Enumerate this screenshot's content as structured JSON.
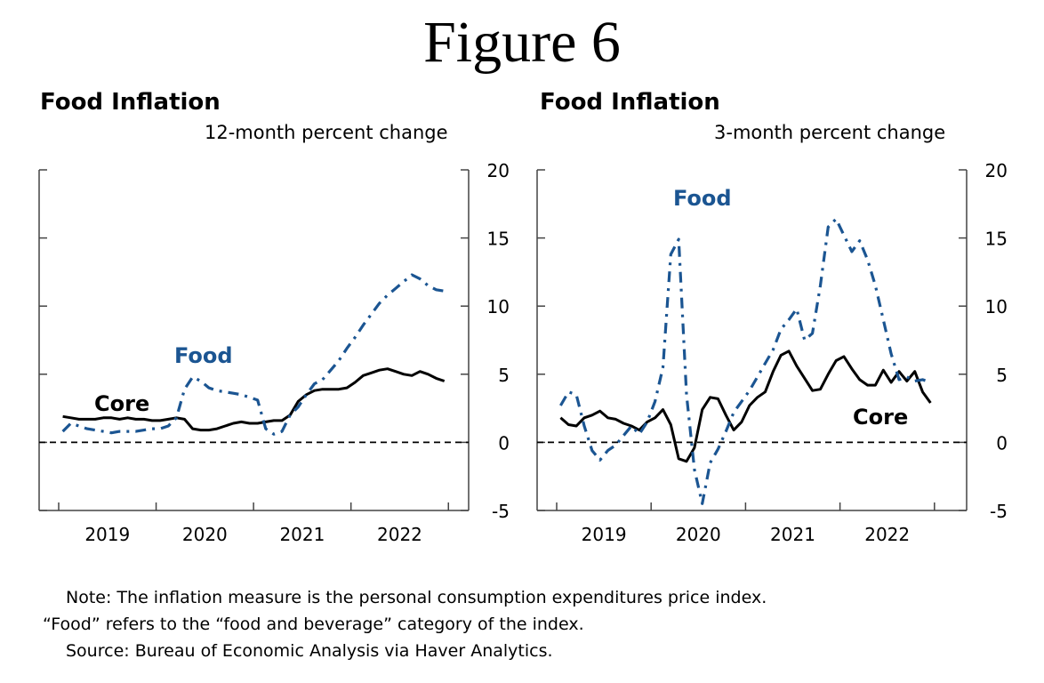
{
  "figure_title": "Figure 6",
  "colors": {
    "food": "#1b5592",
    "core": "#000000",
    "axis": "#444444"
  },
  "notes": {
    "line1": "Note:  The inflation measure is the personal consumption expenditures price index.",
    "line2": "“Food” refers to the “food and beverage” category of the index.",
    "line3": "Source:   Bureau of Economic Analysis via Haver Analytics."
  },
  "chart_data": [
    {
      "type": "line",
      "title": "Food Inflation",
      "subtitle": "12-month percent change",
      "xlabel": "",
      "ylabel": "",
      "ylim": [
        -5,
        20
      ],
      "yticks": [
        -5,
        0,
        5,
        10,
        15,
        20
      ],
      "ytick_labels": [
        "-5",
        "0",
        "5",
        "10",
        "15",
        "20"
      ],
      "xtick_labels": [
        "2019",
        "2020",
        "2021",
        "2022"
      ],
      "x_range": "2019-01 to 2022-12 (monthly)",
      "reference_line": {
        "y": 0,
        "style": "dashed"
      },
      "grid": false,
      "legend": "inline-labels",
      "series": [
        {
          "name": "Core",
          "label": "Core",
          "style": "solid",
          "values": [
            1.9,
            1.8,
            1.7,
            1.7,
            1.7,
            1.8,
            1.8,
            1.7,
            1.8,
            1.7,
            1.7,
            1.6,
            1.6,
            1.7,
            1.8,
            1.7,
            1.0,
            0.9,
            0.9,
            1.0,
            1.2,
            1.4,
            1.5,
            1.4,
            1.4,
            1.5,
            1.6,
            1.6,
            2.0,
            3.0,
            3.5,
            3.8,
            3.9,
            3.9,
            3.9,
            4.0,
            4.4,
            4.9,
            5.1,
            5.3,
            5.4,
            5.2,
            5.0,
            4.9,
            5.2,
            5.0,
            4.7,
            4.5
          ]
        },
        {
          "name": "Food",
          "label": "Food",
          "style": "dash-dot",
          "values": [
            0.8,
            1.4,
            1.2,
            1.0,
            0.9,
            0.8,
            0.7,
            0.8,
            0.8,
            0.8,
            0.9,
            1.0,
            1.0,
            1.2,
            1.8,
            3.9,
            4.8,
            4.5,
            4.0,
            3.8,
            3.7,
            3.6,
            3.5,
            3.3,
            3.1,
            1.0,
            0.6,
            0.8,
            2.0,
            2.6,
            3.5,
            4.3,
            4.6,
            5.3,
            6.0,
            6.9,
            7.7,
            8.6,
            9.4,
            10.2,
            10.8,
            11.3,
            11.8,
            12.3,
            12.0,
            11.5,
            11.2,
            11.1
          ]
        }
      ]
    },
    {
      "type": "line",
      "title": "Food Inflation",
      "subtitle": "3-month percent change",
      "xlabel": "",
      "ylabel": "",
      "ylim": [
        -5,
        20
      ],
      "yticks": [
        -5,
        0,
        5,
        10,
        15,
        20
      ],
      "ytick_labels": [
        "-5",
        "0",
        "5",
        "10",
        "15",
        "20"
      ],
      "xtick_labels": [
        "2019",
        "2020",
        "2021",
        "2022"
      ],
      "x_range": "2019-01 to 2022-12 (monthly)",
      "reference_line": {
        "y": 0,
        "style": "dashed"
      },
      "grid": false,
      "legend": "inline-labels",
      "series": [
        {
          "name": "Core",
          "label": "Core",
          "style": "solid",
          "values": [
            1.8,
            1.3,
            1.2,
            1.8,
            2.0,
            2.3,
            1.8,
            1.7,
            1.4,
            1.2,
            0.9,
            1.5,
            1.8,
            2.4,
            1.3,
            -1.2,
            -1.4,
            -0.4,
            2.4,
            3.3,
            3.2,
            2.0,
            0.9,
            1.5,
            2.7,
            3.3,
            3.7,
            5.2,
            6.4,
            6.7,
            5.6,
            4.7,
            3.8,
            3.9,
            5.0,
            6.0,
            6.3,
            5.4,
            4.6,
            4.2,
            4.2,
            5.3,
            4.4,
            5.2,
            4.5,
            5.2,
            3.7,
            2.9
          ]
        },
        {
          "name": "Food",
          "label": "Food",
          "style": "dash-dot",
          "values": [
            2.7,
            3.7,
            3.5,
            1.2,
            -0.6,
            -1.3,
            -0.6,
            -0.2,
            0.5,
            1.2,
            0.6,
            1.5,
            3.0,
            5.5,
            13.8,
            14.9,
            3.5,
            -2.0,
            -4.5,
            -1.5,
            -0.5,
            0.8,
            2.2,
            3.0,
            3.8,
            4.8,
            5.8,
            6.8,
            8.3,
            9.0,
            9.8,
            7.5,
            8.0,
            11.5,
            15.8,
            16.4,
            15.2,
            14.0,
            14.8,
            13.4,
            11.5,
            9.0,
            6.5,
            4.6,
            4.8,
            4.5,
            4.6,
            4.4
          ]
        }
      ]
    }
  ]
}
